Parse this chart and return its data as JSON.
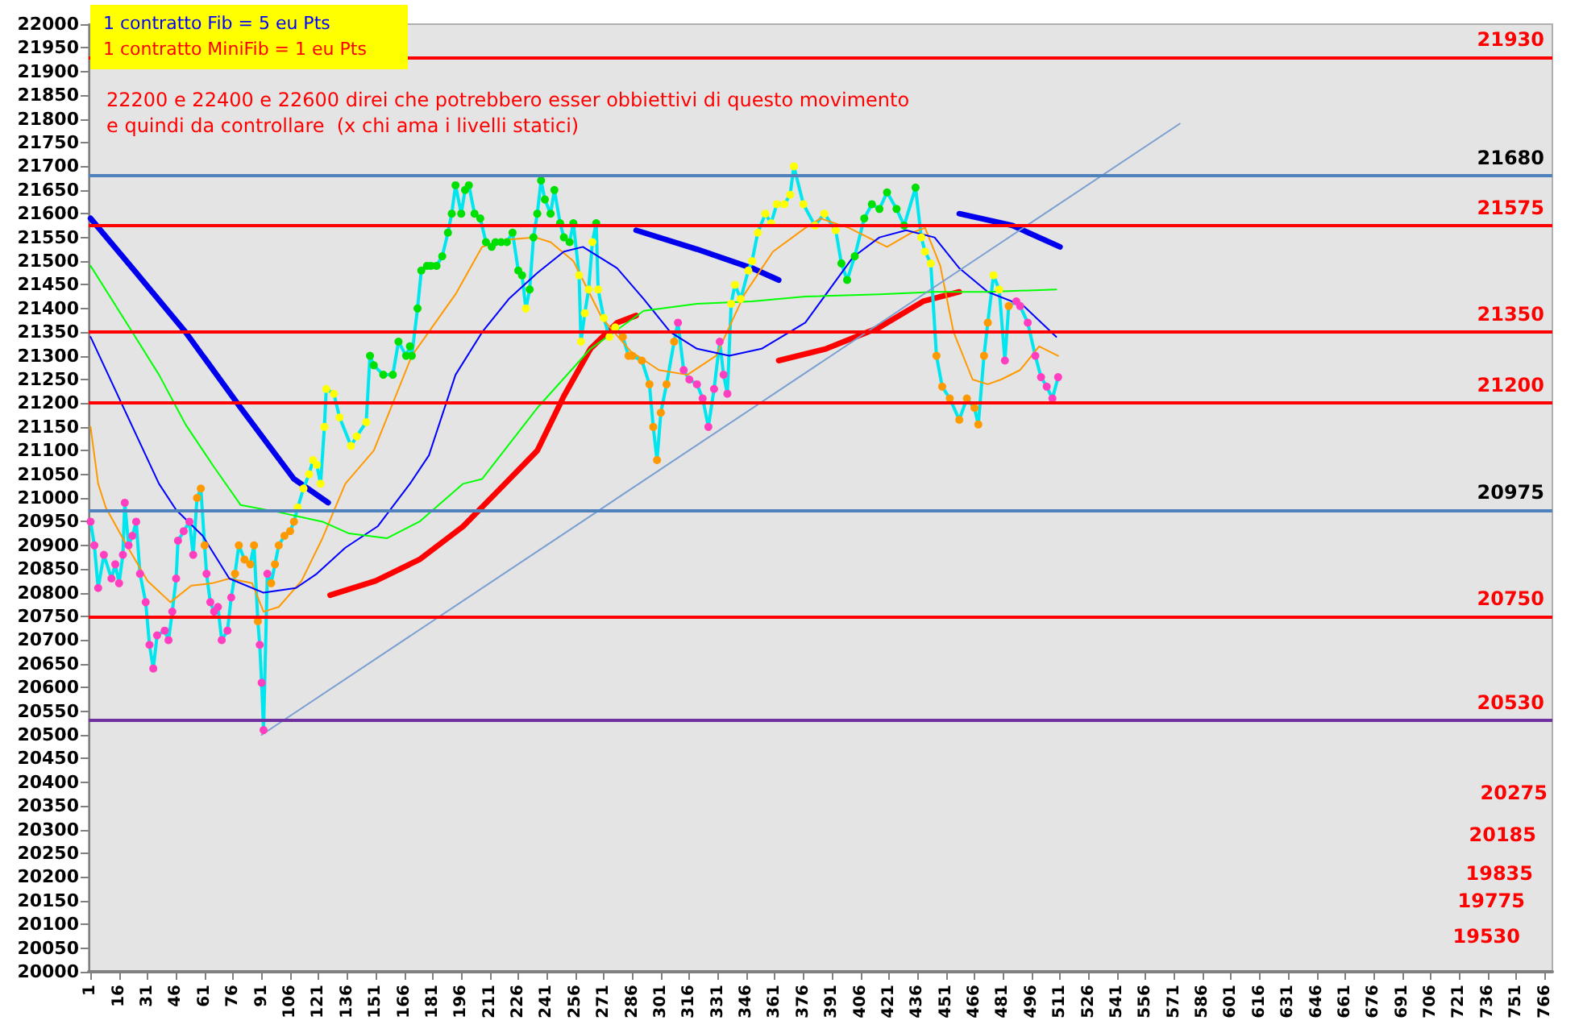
{
  "chart_data": {
    "type": "line",
    "annotations": [
      "1 contratto  Fib = 5 eu Pts",
      "1 contratto  MiniFib = 1 eu Pts",
      "22200 e 22400 e 22600 direi che potrebbero esser obbiettivi di questo movimento",
      "e quindi da controllare  (x chi ama i livelli statici)",
      "20275",
      "20185",
      "19835",
      "19775",
      "19530"
    ],
    "xlim": [
      0,
      770
    ],
    "xticks": [
      1,
      16,
      31,
      46,
      61,
      76,
      91,
      106,
      121,
      136,
      151,
      166,
      181,
      196,
      211,
      226,
      241,
      256,
      271,
      286,
      301,
      316,
      331,
      346,
      361,
      376,
      391,
      406,
      421,
      436,
      451,
      466,
      481,
      496,
      511,
      526,
      541,
      556,
      571,
      586,
      601,
      616,
      631,
      646,
      661,
      676,
      691,
      706,
      721,
      736,
      751,
      766
    ],
    "ylim": [
      20000,
      22000
    ],
    "yticks": [
      20000,
      20050,
      20100,
      20150,
      20200,
      20250,
      20300,
      20350,
      20400,
      20450,
      20500,
      20550,
      20600,
      20650,
      20700,
      20750,
      20800,
      20850,
      20900,
      20950,
      21000,
      21050,
      21100,
      21150,
      21200,
      21250,
      21300,
      21350,
      21400,
      21450,
      21500,
      21550,
      21600,
      21650,
      21700,
      21750,
      21800,
      21850,
      21900,
      21950,
      22000
    ],
    "grid": false,
    "ref_lines": [
      {
        "axis": "y",
        "value": 21930,
        "label": "21930",
        "color": "#ff0000"
      },
      {
        "axis": "y",
        "value": 21680,
        "label": "21680",
        "color": "#4f81bd"
      },
      {
        "axis": "y",
        "value": 21575,
        "label": "21575",
        "color": "#ff0000"
      },
      {
        "axis": "y",
        "value": 21350,
        "label": "21350",
        "color": "#ff0000"
      },
      {
        "axis": "y",
        "value": 21200,
        "label": "21200",
        "color": "#ff0000"
      },
      {
        "axis": "y",
        "value": 20975,
        "label": "20975",
        "color": "#4f81bd"
      },
      {
        "axis": "y",
        "value": 20750,
        "label": "20750",
        "color": "#ff0000"
      },
      {
        "axis": "y",
        "value": 20530,
        "label": "20530",
        "color": "#7030a0"
      }
    ],
    "series": [
      {
        "color": "#00e5ee",
        "marker": "circle",
        "x": [
          1,
          3,
          5,
          8,
          12,
          14,
          16,
          18,
          19,
          21,
          23,
          25,
          27,
          30,
          32,
          34,
          36,
          40,
          42,
          44,
          46,
          47,
          50,
          53,
          55,
          57,
          59,
          61,
          62,
          64,
          66,
          68,
          70,
          73,
          75,
          77,
          79,
          82,
          85,
          87,
          89,
          90,
          91,
          92,
          94,
          96,
          98,
          100,
          103,
          106,
          108,
          110,
          113,
          116,
          118,
          120,
          122,
          124,
          125,
          129,
          132,
          138,
          141,
          146,
          148,
          150,
          155,
          160,
          163,
          167,
          169,
          170,
          173,
          175,
          178,
          180,
          183,
          186,
          189,
          191,
          193,
          196,
          198,
          200,
          203,
          206,
          209,
          212,
          214,
          217,
          220,
          223,
          226,
          228,
          230,
          232,
          234,
          236,
          238,
          240,
          243,
          245,
          248,
          250,
          253,
          255,
          258,
          259,
          261,
          263,
          265,
          267,
          268,
          271,
          274,
          277,
          281,
          284,
          286,
          291,
          295,
          297,
          299,
          301,
          304,
          308,
          310,
          313,
          316,
          320,
          323,
          326,
          329,
          332,
          334,
          336,
          338,
          340,
          343,
          347,
          349,
          352,
          356,
          359,
          362,
          366,
          369,
          371,
          376,
          382,
          387,
          393,
          396,
          399,
          403,
          408,
          412,
          416,
          420,
          425,
          429,
          435,
          438,
          440,
          443,
          446,
          449,
          453,
          458,
          462,
          466,
          468,
          471,
          473,
          476,
          479,
          482,
          484,
          488,
          490,
          494,
          498,
          501,
          504,
          507,
          510
        ],
        "values": [
          20950,
          20900,
          20810,
          20880,
          20830,
          20860,
          20820,
          20880,
          20990,
          20900,
          20920,
          20950,
          20840,
          20780,
          20690,
          20640,
          20710,
          20720,
          20700,
          20760,
          20830,
          20910,
          20930,
          20950,
          20880,
          21000,
          21020,
          20900,
          20840,
          20780,
          20760,
          20770,
          20700,
          20720,
          20790,
          20840,
          20900,
          20870,
          20860,
          20900,
          20740,
          20690,
          20610,
          20510,
          20840,
          20820,
          20860,
          20900,
          20920,
          20930,
          20950,
          20980,
          21020,
          21050,
          21080,
          21070,
          21030,
          21150,
          21230,
          21220,
          21170,
          21110,
          21130,
          21160,
          21300,
          21280,
          21260,
          21260,
          21330,
          21300,
          21320,
          21300,
          21400,
          21480,
          21490,
          21490,
          21490,
          21510,
          21560,
          21600,
          21660,
          21600,
          21650,
          21660,
          21600,
          21590,
          21540,
          21530,
          21540,
          21540,
          21540,
          21560,
          21480,
          21470,
          21400,
          21440,
          21550,
          21600,
          21670,
          21630,
          21600,
          21650,
          21580,
          21550,
          21540,
          21580,
          21470,
          21330,
          21390,
          21440,
          21540,
          21580,
          21440,
          21380,
          21340,
          21360,
          21340,
          21300,
          21300,
          21290,
          21240,
          21150,
          21080,
          21180,
          21240,
          21330,
          21370,
          21270,
          21250,
          21240,
          21210,
          21150,
          21230,
          21330,
          21260,
          21220,
          21410,
          21450,
          21420,
          21480,
          21500,
          21560,
          21600,
          21580,
          21620,
          21620,
          21640,
          21700,
          21620,
          21575,
          21600,
          21565,
          21495,
          21460,
          21510,
          21590,
          21620,
          21610,
          21645,
          21610,
          21575,
          21655,
          21550,
          21520,
          21495,
          21300,
          21235,
          21210,
          21165,
          21210,
          21190,
          21155,
          21300,
          21370,
          21470,
          21440,
          21290,
          21405,
          21415,
          21405,
          21370,
          21300,
          21255,
          21235,
          21210,
          21255
        ],
        "colors": [
          "#ff3fbf",
          "#ff3fbf",
          "#ff3fbf",
          "#ff3fbf",
          "#ff3fbf",
          "#ff3fbf",
          "#ff3fbf",
          "#ff3fbf",
          "#ff3fbf",
          "#ff3fbf",
          "#ff3fbf",
          "#ff3fbf",
          "#ff3fbf",
          "#ff3fbf",
          "#ff3fbf",
          "#ff3fbf",
          "#ff3fbf",
          "#ff3fbf",
          "#ff3fbf",
          "#ff3fbf",
          "#ff3fbf",
          "#ff3fbf",
          "#ff3fbf",
          "#ff3fbf",
          "#ff3fbf",
          "#ff9900",
          "#ff9900",
          "#ff9900",
          "#ff3fbf",
          "#ff3fbf",
          "#ff3fbf",
          "#ff3fbf",
          "#ff3fbf",
          "#ff3fbf",
          "#ff3fbf",
          "#ff9900",
          "#ff9900",
          "#ff9900",
          "#ff9900",
          "#ff9900",
          "#ff9900",
          "#ff3fbf",
          "#ff3fbf",
          "#ff3fbf",
          "#ff3fbf",
          "#ff9900",
          "#ff9900",
          "#ff9900",
          "#ff9900",
          "#ff9900",
          "#ff9900",
          "#ffff00",
          "#ffff00",
          "#ffff00",
          "#ffff00",
          "#ffff00",
          "#ffff00",
          "#ffff00",
          "#ffff00",
          "#ffff00",
          "#ffff00",
          "#ffff00",
          "#ffff00",
          "#ffff00",
          "#00e000",
          "#00e000",
          "#00e000",
          "#00e000",
          "#00e000",
          "#00e000",
          "#00e000",
          "#00e000",
          "#00e000",
          "#00e000",
          "#00e000",
          "#00e000",
          "#00e000",
          "#00e000",
          "#00e000",
          "#00e000",
          "#00e000",
          "#00e000",
          "#00e000",
          "#00e000",
          "#00e000",
          "#00e000",
          "#00e000",
          "#00e000",
          "#00e000",
          "#00e000",
          "#00e000",
          "#00e000",
          "#00e000",
          "#00e000",
          "#ffff00",
          "#00e000",
          "#00e000",
          "#00e000",
          "#00e000",
          "#00e000",
          "#00e000",
          "#00e000",
          "#00e000",
          "#00e000",
          "#00e000",
          "#00e000",
          "#ffff00",
          "#ffff00",
          "#ffff00",
          "#ffff00",
          "#ffff00",
          "#00e000",
          "#ffff00",
          "#ffff00",
          "#ffff00",
          "#ffff00",
          "#ff9900",
          "#ff9900",
          "#ff9900",
          "#ff9900",
          "#ff9900",
          "#ff9900",
          "#ff9900",
          "#ff9900",
          "#ff9900",
          "#ff9900",
          "#ff3fbf",
          "#ff3fbf",
          "#ff3fbf",
          "#ff3fbf",
          "#ff3fbf",
          "#ff3fbf",
          "#ff3fbf",
          "#ff3fbf",
          "#ff3fbf",
          "#ff3fbf",
          "#ffff00",
          "#ffff00",
          "#ffff00",
          "#ffff00",
          "#ffff00",
          "#ffff00",
          "#ffff00",
          "#ffff00",
          "#ffff00",
          "#ffff00",
          "#ffff00",
          "#ffff00",
          "#ffff00",
          "#ffff00",
          "#ffff00",
          "#ffff00",
          "#00e000",
          "#00e000",
          "#00e000",
          "#00e000",
          "#00e000",
          "#00e000",
          "#00e000",
          "#00e000",
          "#00e000",
          "#00e000",
          "#ffff00",
          "#ffff00",
          "#ffff00",
          "#ff9900",
          "#ff9900",
          "#ff9900",
          "#ff9900",
          "#ff9900",
          "#ff9900",
          "#ff9900",
          "#ff9900",
          "#ff9900",
          "#ffff00",
          "#ffff00",
          "#ff3fbf",
          "#ff9900",
          "#ff3fbf",
          "#ff3fbf",
          "#ff3fbf",
          "#ff3fbf",
          "#ff3fbf",
          "#ff3fbf",
          "#ff3fbf",
          "#ff3fbf"
        ]
      },
      {
        "color": "#ff9900",
        "marker": "none",
        "x": [
          1,
          5,
          9,
          20,
          31,
          43,
          54,
          65,
          74,
          86,
          92,
          100,
          112,
          123,
          135,
          150,
          170,
          193,
          207,
          220,
          235,
          243,
          255,
          270,
          285,
          300,
          315,
          330,
          345,
          360,
          377,
          385,
          400,
          420,
          433,
          440,
          448,
          455,
          465,
          473,
          480,
          490,
          500,
          510
        ],
        "values": [
          21150,
          21030,
          20980,
          20900,
          20825,
          20780,
          20815,
          20820,
          20830,
          20820,
          20760,
          20770,
          20825,
          20915,
          21030,
          21100,
          21300,
          21430,
          21530,
          21545,
          21550,
          21540,
          21500,
          21380,
          21310,
          21270,
          21260,
          21300,
          21430,
          21520,
          21570,
          21590,
          21570,
          21530,
          21560,
          21570,
          21490,
          21350,
          21250,
          21240,
          21250,
          21270,
          21320,
          21300
        ]
      },
      {
        "color": "#0000ff",
        "marker": "none",
        "x": [
          1,
          37,
          46,
          60,
          74,
          92,
          109,
          120,
          135,
          152,
          169,
          179,
          193,
          207,
          221,
          236,
          250,
          260,
          278,
          292,
          306,
          320,
          337,
          354,
          377,
          402,
          416,
          430,
          445,
          458,
          473,
          492,
          509
        ],
        "values": [
          21340,
          21030,
          20975,
          20920,
          20830,
          20800,
          20810,
          20840,
          20895,
          20940,
          21030,
          21090,
          21260,
          21350,
          21420,
          21475,
          21520,
          21530,
          21485,
          21420,
          21350,
          21315,
          21300,
          21315,
          21370,
          21508,
          21550,
          21565,
          21550,
          21485,
          21435,
          21405,
          21340
        ]
      },
      {
        "color": "#00ff00",
        "marker": "none",
        "x": [
          1,
          23,
          37,
          51,
          66,
          80,
          100,
          123,
          137,
          157,
          174,
          197,
          207,
          236,
          264,
          292,
          320,
          349,
          377,
          416,
          445,
          473,
          509
        ],
        "values": [
          21490,
          21350,
          21260,
          21155,
          21065,
          20985,
          20970,
          20950,
          20925,
          20915,
          20950,
          21030,
          21040,
          21190,
          21315,
          21395,
          21410,
          21415,
          21425,
          21430,
          21435,
          21435,
          21440
        ]
      },
      {
        "color": "#ff0000",
        "marker": "none",
        "x": [
          127,
          151,
          174,
          197,
          219,
          236,
          250,
          264,
          278,
          288,
          320,
          363,
          388,
          416,
          439,
          458
        ],
        "values": [
          20795,
          20825,
          20870,
          20940,
          21030,
          21100,
          21215,
          21315,
          21370,
          21385,
          null,
          21290,
          21315,
          21360,
          21415,
          21435
        ]
      },
      {
        "color": "#0000ee",
        "marker": "none",
        "x": [
          1,
          23,
          51,
          80,
          108,
          126,
          200,
          288,
          320,
          349,
          363,
          400,
          458,
          486,
          511
        ],
        "values": [
          21590,
          21485,
          21350,
          21190,
          21040,
          20990,
          null,
          21565,
          21525,
          21485,
          21460,
          null,
          21600,
          21575,
          21530
        ]
      },
      {
        "color": "#7a9fd0",
        "marker": "none",
        "x": [
          91,
          574
        ],
        "values": [
          20500,
          21790
        ]
      }
    ]
  }
}
